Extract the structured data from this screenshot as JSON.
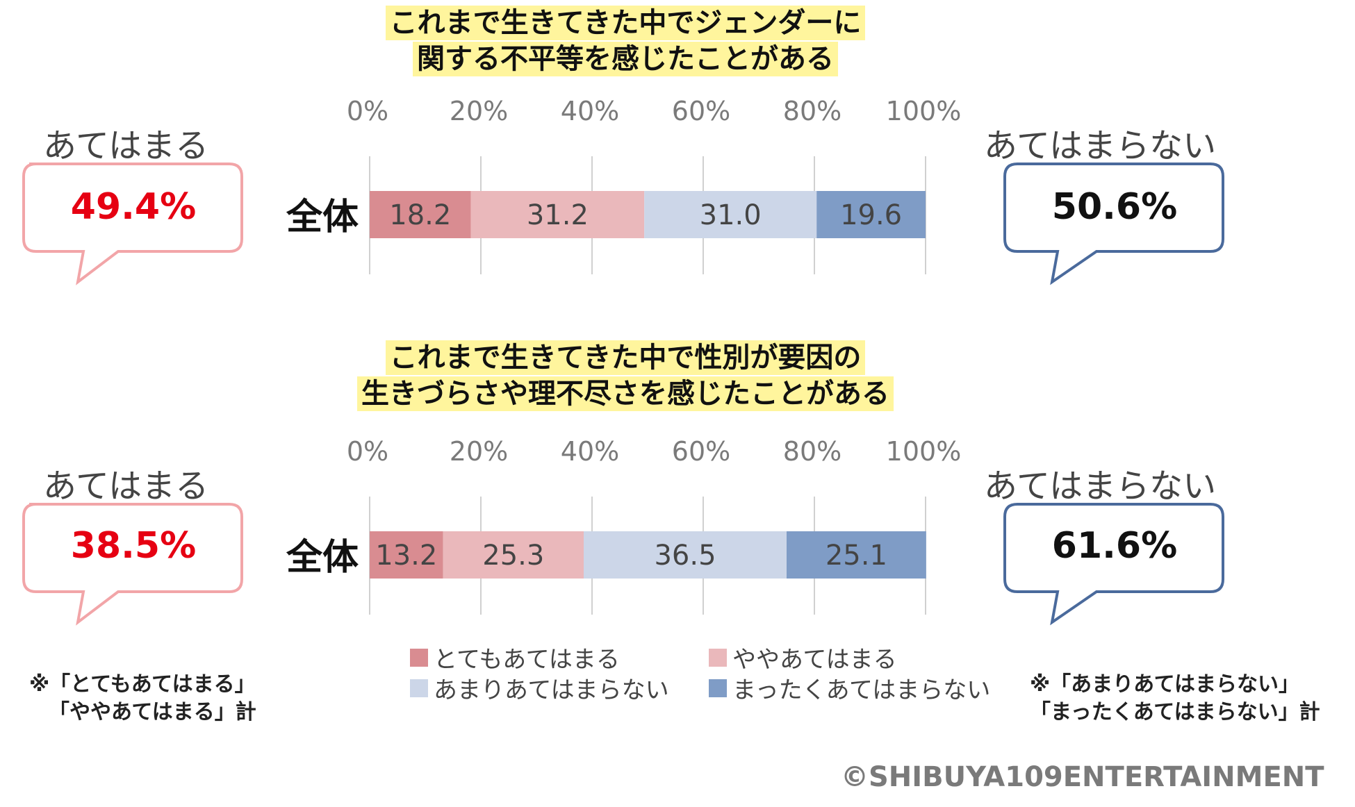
{
  "colors": {
    "very_true": "#d98c91",
    "somewhat_true": "#eab8bb",
    "not_really": "#ccd6e8",
    "not_at_all": "#7f9cc6",
    "pink_callout": "#f2a5a8",
    "blue_callout": "#4a6a9c",
    "red_value": "#e60012",
    "title_highlight": "#fff59d"
  },
  "axis_ticks": [
    "0%",
    "20%",
    "40%",
    "60%",
    "80%",
    "100%"
  ],
  "charts": [
    {
      "title_lines": [
        "これまで生きてきた中でジェンダーに",
        "関する不平等を感じたことがある"
      ],
      "row_label": "全体",
      "left_label": "あてはまる",
      "left_value": "49.4%",
      "right_label": "あてはまらない",
      "right_value": "50.6%",
      "segment_labels": [
        "18.2",
        "31.2",
        "31.0",
        "19.6"
      ]
    },
    {
      "title_lines": [
        "これまで生きてきた中で性別が要因の",
        "生きづらさや理不尽さを感じたことがある"
      ],
      "row_label": "全体",
      "left_label": "あてはまる",
      "left_value": "38.5%",
      "right_label": "あてはまらない",
      "right_value": "61.6%",
      "segment_labels": [
        "13.2",
        "25.3",
        "36.5",
        "25.1"
      ]
    }
  ],
  "legend": [
    "とてもあてはまる",
    "ややあてはまる",
    "あまりあてはまらない",
    "まったくあてはまらない"
  ],
  "notes": {
    "left": [
      "※「とてもあてはまる」",
      "「ややあてはまる」計"
    ],
    "right": [
      "※「あまりあてはまらない」",
      "「まったくあてはまらない」計"
    ]
  },
  "copyright": "©SHIBUYA109ENTERTAINMENT",
  "chart_data": [
    {
      "type": "bar",
      "orientation": "horizontal-stacked-100",
      "title": "これまで生きてきた中でジェンダーに関する不平等を感じたことがある",
      "categories": [
        "全体"
      ],
      "xlim": [
        0,
        100
      ],
      "xticks": [
        "0%",
        "20%",
        "40%",
        "60%",
        "80%",
        "100%"
      ],
      "grid": true,
      "series": [
        {
          "name": "とてもあてはまる",
          "values": [
            18.2
          ]
        },
        {
          "name": "ややあてはまる",
          "values": [
            31.2
          ]
        },
        {
          "name": "あまりあてはまらない",
          "values": [
            31.0
          ]
        },
        {
          "name": "まったくあてはまらない",
          "values": [
            19.6
          ]
        }
      ],
      "legend": "bottom"
    },
    {
      "type": "bar",
      "orientation": "horizontal-stacked-100",
      "title": "これまで生きてきた中で性別が要因の生きづらさや理不尽さを感じたことがある",
      "categories": [
        "全体"
      ],
      "xlim": [
        0,
        100
      ],
      "xticks": [
        "0%",
        "20%",
        "40%",
        "60%",
        "80%",
        "100%"
      ],
      "grid": true,
      "series": [
        {
          "name": "とてもあてはまる",
          "values": [
            13.2
          ]
        },
        {
          "name": "ややあてはまる",
          "values": [
            25.3
          ]
        },
        {
          "name": "あまりあてはまらない",
          "values": [
            36.5
          ]
        },
        {
          "name": "まったくあてはまらない",
          "values": [
            25.1
          ]
        }
      ],
      "legend": "bottom"
    }
  ]
}
